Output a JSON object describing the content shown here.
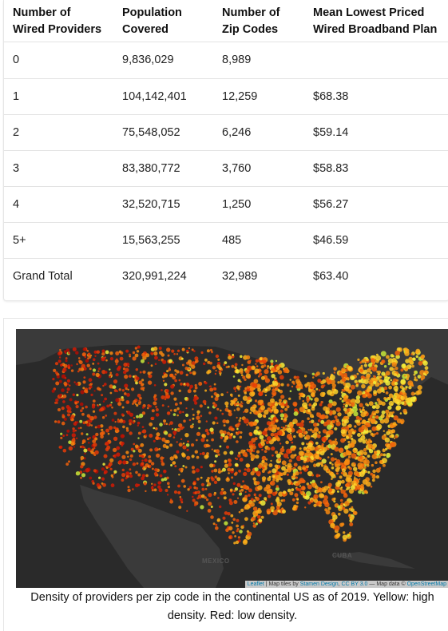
{
  "table": {
    "headers": [
      "Number of Wired Providers",
      "Population Covered",
      "Number of Zip Codes",
      "Mean Lowest Priced Wired Broadband Plan"
    ],
    "rows": [
      [
        "0",
        "9,836,029",
        "8,989",
        ""
      ],
      [
        "1",
        "104,142,401",
        "12,259",
        "$68.38"
      ],
      [
        "2",
        "75,548,052",
        "6,246",
        "$59.14"
      ],
      [
        "3",
        "83,380,772",
        "3,760",
        "$58.83"
      ],
      [
        "4",
        "32,520,715",
        "1,250",
        "$56.27"
      ],
      [
        "5+",
        "15,563,255",
        "485",
        "$46.59"
      ],
      [
        "Grand Total",
        "320,991,224",
        "32,989",
        "$63.40"
      ]
    ]
  },
  "map": {
    "labels": {
      "mexico": "MEXICO",
      "cuba": "CUBA"
    },
    "attribution": {
      "leaflet": "Leaflet",
      "sep1": " | Map tiles by ",
      "stamen": "Stamen Design",
      "sep2": ", ",
      "license": "CC BY 3.0",
      "sep3": " — Map data © ",
      "osm": "OpenStreetMap"
    },
    "colors": {
      "background": "#2a2a2a",
      "land": "#3a3a3a",
      "high": "#ffee33",
      "low": "#cc1100"
    }
  },
  "caption": "Density of providers per zip code in the continental US as of 2019. Yellow: high density. Red: low density."
}
